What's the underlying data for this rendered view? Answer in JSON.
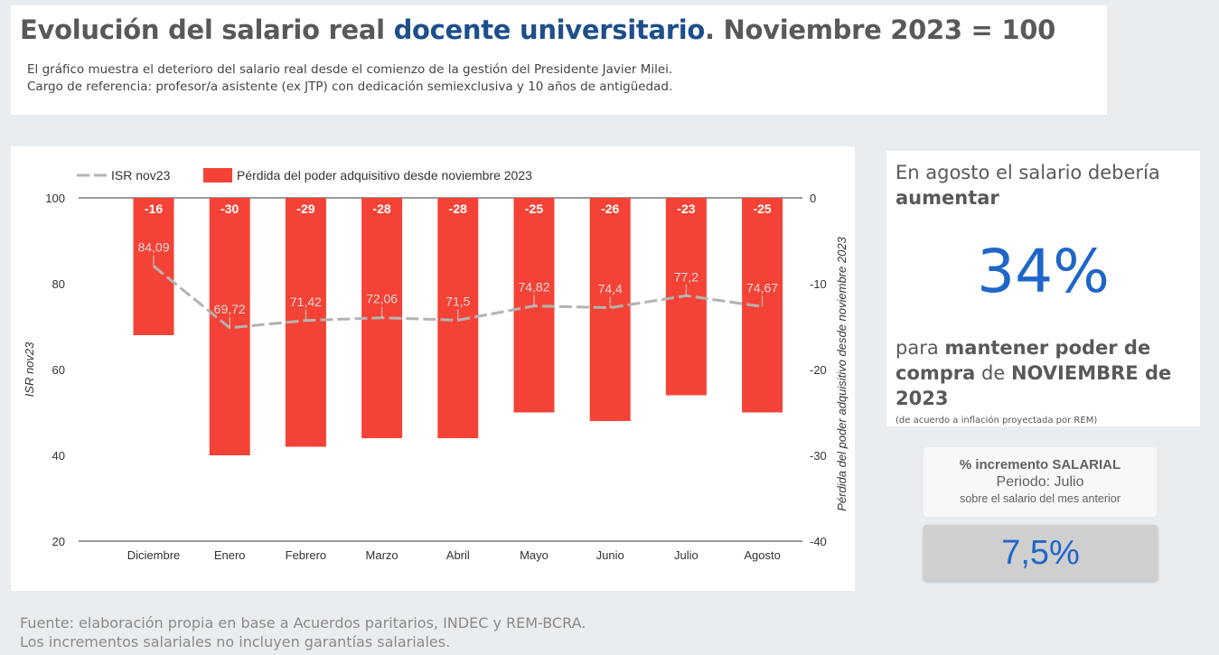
{
  "header": {
    "title_part1": "Evolución del salario real ",
    "title_accent": "docente universitario",
    "title_part2": ". Noviembre 2023 = 100",
    "subtitle_line1": "El gráfico muestra el deterioro del salario real desde el comienzo de la gestión del Presidente Javier Milei.",
    "subtitle_line2": "Cargo de referencia: profesor/a asistente (ex JTP) con dedicación semiexclusiva y 10 años de antigüedad."
  },
  "chart_data": {
    "type": "bar",
    "categories": [
      "Diciembre",
      "Enero",
      "Febrero",
      "Marzo",
      "Abril",
      "Mayo",
      "Junio",
      "Julio",
      "Agosto"
    ],
    "series": [
      {
        "name": "ISR nov23",
        "type": "line",
        "axis": "left",
        "values": [
          84.09,
          69.72,
          71.42,
          72.06,
          71.5,
          74.82,
          74.4,
          77.2,
          74.67
        ],
        "labels": [
          "84,09",
          "69,72",
          "71,42",
          "72,06",
          "71,5",
          "74,82",
          "74,4",
          "77,2",
          "74,67"
        ]
      },
      {
        "name": "Pérdida del poder adquisitivo desde noviembre 2023",
        "type": "bar",
        "axis": "right",
        "values": [
          -16,
          -30,
          -29,
          -28,
          -28,
          -25,
          -26,
          -23,
          -25
        ]
      }
    ],
    "ylabel": "ISR nov23",
    "ylabel_right": "Pérdida del poder adquisitivo desde noviembre 2023",
    "ylim": [
      20,
      100
    ],
    "ylim_right": [
      -40,
      0
    ],
    "yticks": [
      100,
      80,
      60,
      40,
      20
    ],
    "yticks_right": [
      0,
      -10,
      -20,
      -30,
      -40
    ],
    "legend_position": "top-left",
    "colors": {
      "bar": "#f44336",
      "line": "#b3b3b3"
    }
  },
  "info": {
    "line1": "En agosto el salario debería",
    "line2": "aumentar",
    "big_value": "34%",
    "b1": "para ",
    "b2": "mantener poder de compra",
    "b3": " de ",
    "b4": "NOVIEMBRE de 2023",
    "note": "(de acuerdo a inflación proyectada por REM)"
  },
  "increment": {
    "title": "% incremento SALARIAL",
    "period": "Periodo: Julio",
    "desc": "sobre el salario del mes anterior",
    "value": "7,5%"
  },
  "footer": {
    "line1": "Fuente: elaboración propia en base a Acuerdos paritarios, INDEC y REM-BCRA.",
    "line2": "Los incrementos salariales no incluyen garantías salariales."
  },
  "colors": {
    "accent": "#1d4f8a",
    "big_number": "#1f66c9"
  }
}
